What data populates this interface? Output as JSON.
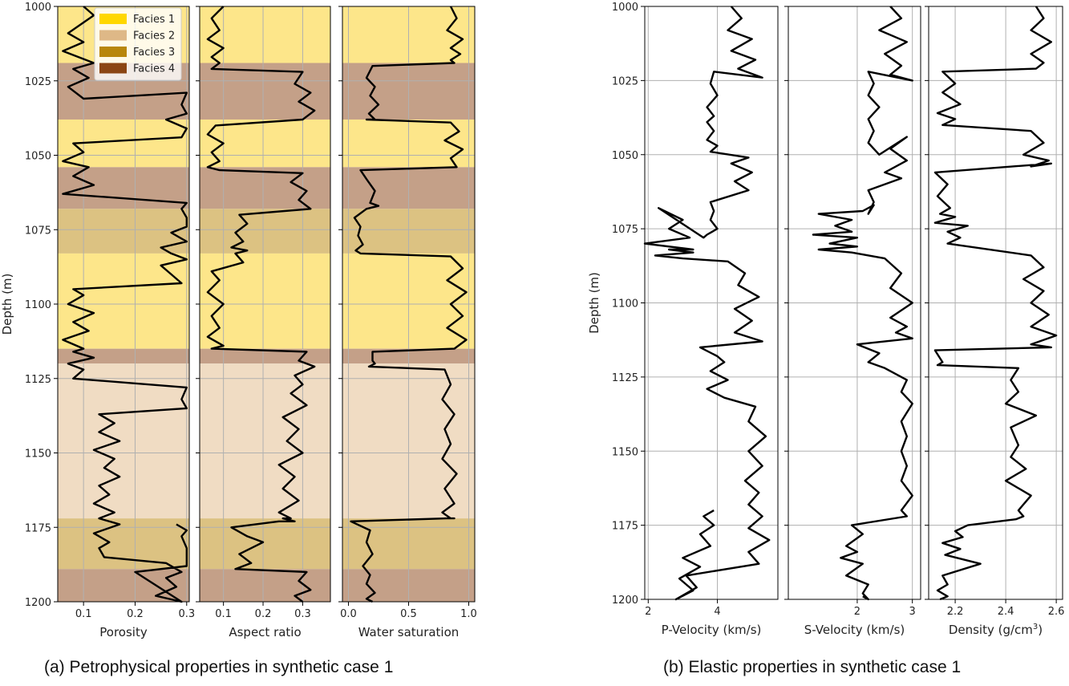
{
  "captions": {
    "a": "(a) Petrophysical properties in synthetic case 1",
    "b": "(b) Elastic properties in synthetic case 1"
  },
  "depth_label": "Depth (m)",
  "facies_legend": [
    {
      "name": "Facies 1",
      "color": "#ffd700"
    },
    {
      "name": "Facies 2",
      "color": "#deb887"
    },
    {
      "name": "Facies 3",
      "color": "#b8860b"
    },
    {
      "name": "Facies 4",
      "color": "#8b4513"
    }
  ],
  "chart_data": [
    {
      "type": "line",
      "panel": "a",
      "xlabel": "Porosity",
      "ylabel": "Depth (m)",
      "xlim": [
        0.05,
        0.305
      ],
      "ylim": [
        1200,
        1000
      ],
      "xticks": [
        {
          "v": 0.1,
          "t": "0.1"
        },
        {
          "v": 0.2,
          "t": "0.2"
        },
        {
          "v": 0.3,
          "t": "0.3"
        }
      ],
      "yticks": [
        1000,
        1025,
        1050,
        1075,
        1100,
        1125,
        1150,
        1175,
        1200
      ],
      "facies_background": true,
      "x": [
        0.1,
        0.12,
        0.07,
        0.1,
        0.06,
        0.12,
        0.08,
        0.11,
        0.07,
        0.1,
        0.3,
        0.29,
        0.3,
        0.26,
        0.3,
        0.29,
        0.08,
        0.1,
        0.06,
        0.11,
        0.08,
        0.12,
        0.06,
        0.3,
        0.29,
        0.3,
        0.3,
        0.27,
        0.3,
        0.25,
        0.27,
        0.3,
        0.25,
        0.27,
        0.29,
        0.08,
        0.1,
        0.07,
        0.12,
        0.08,
        0.11,
        0.06,
        0.1,
        0.08,
        0.12,
        0.07,
        0.1,
        0.08,
        0.3,
        0.29,
        0.3,
        0.13,
        0.16,
        0.13,
        0.17,
        0.12,
        0.16,
        0.14,
        0.17,
        0.13,
        0.15,
        0.12,
        0.16,
        0.13,
        0.17,
        0.12,
        0.15,
        0.13,
        0.14,
        0.26,
        0.29,
        0.26,
        0.28,
        0.24,
        0.29,
        0.2,
        0.3,
        0.3,
        0.29,
        0.3,
        0.28
      ],
      "y": [
        1000,
        1003,
        1009,
        1012,
        1015,
        1019,
        1021,
        1024,
        1027,
        1031,
        1029,
        1033,
        1036,
        1038,
        1041,
        1044,
        1046,
        1049,
        1052,
        1054,
        1057,
        1060,
        1063,
        1066,
        1068,
        1071,
        1074,
        1076,
        1079,
        1081,
        1083,
        1085,
        1087,
        1090,
        1093,
        1095,
        1097,
        1100,
        1103,
        1106,
        1109,
        1112,
        1115,
        1116,
        1118,
        1120,
        1122,
        1125,
        1128,
        1132,
        1135,
        1137,
        1140,
        1143,
        1146,
        1149,
        1152,
        1155,
        1158,
        1161,
        1164,
        1167,
        1170,
        1172,
        1174,
        1177,
        1180,
        1182,
        1185,
        1187,
        1190,
        1192,
        1195,
        1198,
        1200,
        1190,
        1188,
        1182,
        1178,
        1176,
        1174
      ]
    },
    {
      "type": "line",
      "panel": "a",
      "xlabel": "Aspect ratio",
      "xlim": [
        0.04,
        0.37
      ],
      "ylim": [
        1200,
        1000
      ],
      "xticks": [
        {
          "v": 0.1,
          "t": "0.1"
        },
        {
          "v": 0.2,
          "t": "0.2"
        },
        {
          "v": 0.3,
          "t": "0.3"
        }
      ],
      "yticks": [
        1000,
        1025,
        1050,
        1075,
        1100,
        1125,
        1150,
        1175,
        1200
      ],
      "facies_background": true,
      "x": [
        0.1,
        0.07,
        0.09,
        0.06,
        0.1,
        0.07,
        0.09,
        0.07,
        0.3,
        0.28,
        0.32,
        0.29,
        0.33,
        0.3,
        0.08,
        0.06,
        0.1,
        0.07,
        0.09,
        0.06,
        0.09,
        0.3,
        0.27,
        0.31,
        0.29,
        0.32,
        0.14,
        0.16,
        0.13,
        0.15,
        0.12,
        0.16,
        0.13,
        0.15,
        0.07,
        0.09,
        0.06,
        0.1,
        0.07,
        0.09,
        0.06,
        0.1,
        0.07,
        0.31,
        0.29,
        0.33,
        0.28,
        0.3,
        0.27,
        0.31,
        0.25,
        0.29,
        0.26,
        0.3,
        0.24,
        0.28,
        0.25,
        0.29,
        0.24,
        0.27,
        0.25,
        0.28,
        0.24,
        0.12,
        0.16,
        0.2,
        0.14,
        0.17,
        0.13,
        0.31,
        0.29,
        0.32,
        0.28,
        0.3
      ],
      "y": [
        1000,
        1004,
        1008,
        1011,
        1014,
        1017,
        1019,
        1021,
        1022,
        1026,
        1029,
        1032,
        1035,
        1038,
        1040,
        1043,
        1046,
        1049,
        1052,
        1054,
        1055,
        1056,
        1059,
        1062,
        1065,
        1068,
        1070,
        1073,
        1076,
        1079,
        1081,
        1082,
        1083,
        1086,
        1089,
        1092,
        1096,
        1100,
        1104,
        1108,
        1111,
        1114,
        1115,
        1116,
        1119,
        1121,
        1124,
        1127,
        1130,
        1134,
        1138,
        1142,
        1146,
        1150,
        1154,
        1158,
        1162,
        1166,
        1170,
        1172,
        1172,
        1173,
        1173,
        1175,
        1178,
        1180,
        1184,
        1187,
        1189,
        1190,
        1193,
        1196,
        1198,
        1200
      ]
    },
    {
      "type": "line",
      "panel": "a",
      "xlabel": "Water saturation",
      "xlim": [
        -0.05,
        1.05
      ],
      "ylim": [
        1200,
        1000
      ],
      "xticks": [
        {
          "v": 0.0,
          "t": "0.0"
        },
        {
          "v": 0.5,
          "t": "0.5"
        },
        {
          "v": 1.0,
          "t": "1.0"
        }
      ],
      "yticks": [
        1000,
        1025,
        1050,
        1075,
        1100,
        1125,
        1150,
        1175,
        1200
      ],
      "facies_background": true,
      "x": [
        0.85,
        0.9,
        0.82,
        0.95,
        0.85,
        0.93,
        0.85,
        0.88,
        0.2,
        0.15,
        0.22,
        0.18,
        0.25,
        0.17,
        0.22,
        0.15,
        0.85,
        0.92,
        0.8,
        0.95,
        0.85,
        0.9,
        0.1,
        0.15,
        0.22,
        0.18,
        0.25,
        0.15,
        0.05,
        0.1,
        0.08,
        0.12,
        0.06,
        0.1,
        0.85,
        0.95,
        0.82,
        0.98,
        0.85,
        0.95,
        0.82,
        0.98,
        0.88,
        0.2,
        0.2,
        0.22,
        0.17,
        0.8,
        0.85,
        0.78,
        0.88,
        0.8,
        0.85,
        0.78,
        0.9,
        0.8,
        0.88,
        0.78,
        0.85,
        0.8,
        0.88,
        0.82,
        0.02,
        0.18,
        0.15,
        0.2,
        0.12,
        0.18,
        0.15,
        0.22,
        0.15,
        0.2
      ],
      "y": [
        1000,
        1004,
        1008,
        1011,
        1014,
        1016,
        1018,
        1019,
        1020,
        1024,
        1027,
        1030,
        1033,
        1036,
        1038,
        1038,
        1039,
        1042,
        1045,
        1048,
        1051,
        1054,
        1055,
        1058,
        1062,
        1066,
        1067,
        1068,
        1071,
        1074,
        1077,
        1080,
        1082,
        1083,
        1084,
        1088,
        1092,
        1096,
        1100,
        1104,
        1108,
        1112,
        1115,
        1116,
        1119,
        1120,
        1121,
        1122,
        1127,
        1132,
        1137,
        1142,
        1147,
        1152,
        1157,
        1162,
        1167,
        1170,
        1172,
        1172,
        1172,
        1172,
        1173,
        1176,
        1180,
        1184,
        1188,
        1191,
        1194,
        1197,
        1199,
        1200
      ]
    },
    {
      "type": "line",
      "panel": "b",
      "xlabel": "P-Velocity (km/s)",
      "ylabel": "Depth (m)",
      "xlim": [
        1.9,
        5.75
      ],
      "ylim": [
        1200,
        1000
      ],
      "xticks": [
        {
          "v": 2,
          "t": "2"
        },
        {
          "v": 4,
          "t": "4"
        }
      ],
      "yticks": [
        1000,
        1025,
        1050,
        1075,
        1100,
        1125,
        1150,
        1175,
        1200
      ],
      "x": [
        4.4,
        4.7,
        4.3,
        5,
        4.4,
        5.1,
        4.6,
        5.3,
        3.9,
        3.8,
        4.0,
        3.7,
        3.9,
        3.7,
        3.9,
        3.7,
        4.0,
        3.8,
        4.9,
        4.4,
        5.0,
        4.5,
        4.9,
        3.8,
        3.9,
        3.8,
        4.0,
        3.7,
        3.6,
        2.3,
        3.0,
        2.6,
        3.2,
        1.9,
        3.3,
        2.6,
        3.3,
        2.2,
        3.0,
        4.3,
        4.8,
        4.6,
        5.2,
        4.5,
        5.0,
        4.5,
        5.3,
        3.5,
        4.0,
        4.2,
        3.8,
        4.3,
        3.7,
        4.2,
        5.1,
        4.9,
        5.4,
        4.9,
        5.3,
        4.8,
        5.2,
        4.9,
        5.3,
        4.9,
        5.5,
        4.9,
        5.2,
        3.1,
        3.4,
        2.8,
        3.3,
        2.9,
        3.5,
        3.0,
        3.8,
        3.5,
        3.9,
        3.6,
        3.9
      ],
      "y": [
        1000,
        1004,
        1008,
        1011,
        1015,
        1018,
        1021,
        1024,
        1022,
        1026,
        1030,
        1034,
        1037,
        1039,
        1042,
        1045,
        1047,
        1049,
        1051,
        1053,
        1056,
        1059,
        1062,
        1066,
        1069,
        1072,
        1075,
        1077,
        1078,
        1068,
        1072,
        1075,
        1078,
        1080,
        1082,
        1082,
        1083,
        1084,
        1085,
        1086,
        1090,
        1094,
        1098,
        1102,
        1106,
        1110,
        1113,
        1115,
        1118,
        1120,
        1123,
        1126,
        1129,
        1132,
        1135,
        1140,
        1145,
        1150,
        1155,
        1160,
        1164,
        1168,
        1172,
        1176,
        1180,
        1184,
        1188,
        1192,
        1196,
        1200,
        1197,
        1193,
        1189,
        1186,
        1182,
        1178,
        1175,
        1172,
        1170
      ]
    },
    {
      "type": "line",
      "panel": "b",
      "xlabel": "S-Velocity (km/s)",
      "xlim": [
        0.75,
        3.15
      ],
      "ylim": [
        1200,
        1000
      ],
      "xticks": [
        {
          "v": 2,
          "t": "2"
        },
        {
          "v": 3,
          "t": "3"
        }
      ],
      "yticks": [
        1000,
        1025,
        1050,
        1075,
        1100,
        1125,
        1150,
        1175,
        1200
      ],
      "x": [
        2.6,
        2.8,
        2.4,
        2.9,
        2.5,
        2.8,
        2.6,
        3.0,
        2.2,
        2.3,
        2.2,
        2.4,
        2.2,
        2.3,
        2.2,
        2.4,
        2.9,
        2.6,
        2.9,
        2.5,
        2.8,
        2.2,
        2.3,
        2.2,
        2.3,
        2.1,
        1.3,
        1.9,
        1.6,
        1.9,
        1.2,
        2.0,
        1.5,
        2.0,
        1.3,
        1.9,
        2.5,
        2.8,
        2.6,
        3.0,
        2.6,
        2.9,
        2.7,
        3.0,
        2.0,
        2.4,
        2.2,
        2.5,
        2.9,
        2.8,
        3.0,
        2.8,
        2.9,
        2.8,
        2.9,
        2.8,
        3.0,
        2.8,
        2.9,
        1.9,
        2.1,
        1.8,
        2.0,
        1.7,
        2.1,
        1.8,
        2.2,
        2.1,
        2.2,
        2.1
      ],
      "y": [
        1000,
        1004,
        1008,
        1012,
        1016,
        1020,
        1023,
        1025,
        1022,
        1026,
        1030,
        1034,
        1038,
        1042,
        1046,
        1050,
        1044,
        1048,
        1052,
        1056,
        1058,
        1062,
        1066,
        1070,
        1067,
        1069,
        1070,
        1072,
        1074,
        1076,
        1077,
        1078,
        1080,
        1081,
        1082,
        1083,
        1085,
        1090,
        1095,
        1100,
        1105,
        1108,
        1110,
        1112,
        1114,
        1117,
        1120,
        1122,
        1126,
        1130,
        1134,
        1140,
        1145,
        1150,
        1155,
        1160,
        1165,
        1170,
        1172,
        1175,
        1178,
        1182,
        1184,
        1186,
        1188,
        1192,
        1195,
        1198,
        1200,
        1199
      ]
    },
    {
      "type": "line",
      "panel": "b",
      "xlabel": "Density (g/cm3)",
      "xlim": [
        2.095,
        2.625
      ],
      "ylim": [
        1200,
        1000
      ],
      "xticks": [
        {
          "v": 2.2,
          "t": "2.2"
        },
        {
          "v": 2.4,
          "t": "2.4"
        },
        {
          "v": 2.6,
          "t": "2.6"
        }
      ],
      "yticks": [
        1000,
        1025,
        1050,
        1075,
        1100,
        1125,
        1150,
        1175,
        1200
      ],
      "x": [
        2.52,
        2.55,
        2.5,
        2.58,
        2.5,
        2.55,
        2.52,
        2.15,
        2.2,
        2.15,
        2.22,
        2.13,
        2.2,
        2.15,
        2.5,
        2.55,
        2.47,
        2.57,
        2.5,
        2.58,
        2.12,
        2.17,
        2.13,
        2.18,
        2.14,
        2.2,
        2.12,
        2.25,
        2.17,
        2.22,
        2.17,
        2.5,
        2.55,
        2.47,
        2.55,
        2.5,
        2.57,
        2.5,
        2.6,
        2.5,
        2.58,
        2.12,
        2.15,
        2.13,
        2.45,
        2.42,
        2.45,
        2.4,
        2.52,
        2.42,
        2.45,
        2.42,
        2.48,
        2.4,
        2.5,
        2.45,
        2.47,
        2.44,
        2.25,
        2.2,
        2.23,
        2.15,
        2.22,
        2.16,
        2.3,
        2.15,
        2.17,
        2.13,
        2.17,
        2.14
      ],
      "y": [
        1000,
        1004,
        1008,
        1012,
        1016,
        1019,
        1021,
        1022,
        1026,
        1029,
        1033,
        1036,
        1038,
        1040,
        1042,
        1046,
        1050,
        1052,
        1054,
        1053,
        1056,
        1060,
        1064,
        1068,
        1070,
        1071,
        1073,
        1074,
        1076,
        1078,
        1080,
        1084,
        1088,
        1092,
        1096,
        1100,
        1104,
        1108,
        1111,
        1114,
        1115,
        1116,
        1120,
        1121,
        1122,
        1126,
        1130,
        1134,
        1138,
        1142,
        1148,
        1152,
        1156,
        1160,
        1165,
        1170,
        1172,
        1173,
        1175,
        1177,
        1179,
        1181,
        1183,
        1185,
        1188,
        1192,
        1195,
        1197,
        1199,
        1200
      ]
    }
  ],
  "facies_intervals": [
    {
      "top": 1000,
      "bottom": 1019,
      "facies": 1
    },
    {
      "top": 1019,
      "bottom": 1038,
      "facies": 4
    },
    {
      "top": 1038,
      "bottom": 1054,
      "facies": 1
    },
    {
      "top": 1054,
      "bottom": 1068,
      "facies": 4
    },
    {
      "top": 1068,
      "bottom": 1083,
      "facies": 3
    },
    {
      "top": 1083,
      "bottom": 1115,
      "facies": 1
    },
    {
      "top": 1115,
      "bottom": 1120,
      "facies": 4
    },
    {
      "top": 1120,
      "bottom": 1172,
      "facies": 2
    },
    {
      "top": 1172,
      "bottom": 1189,
      "facies": 3
    },
    {
      "top": 1189,
      "bottom": 1200,
      "facies": 4
    }
  ]
}
